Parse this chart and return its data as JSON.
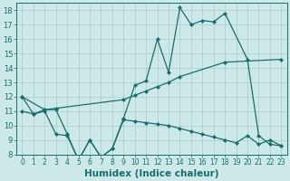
{
  "title": "",
  "xlabel": "Humidex (Indice chaleur)",
  "background_color": "#cce8e8",
  "grid_color": "#aacccc",
  "line_color": "#1a6e6a",
  "xlim": [
    -0.5,
    23.5
  ],
  "ylim": [
    8,
    18.5
  ],
  "xticks": [
    0,
    1,
    2,
    3,
    4,
    5,
    6,
    7,
    8,
    9,
    10,
    11,
    12,
    13,
    14,
    15,
    16,
    17,
    18,
    19,
    20,
    21,
    22,
    23
  ],
  "yticks": [
    8,
    9,
    10,
    11,
    12,
    13,
    14,
    15,
    16,
    17,
    18
  ],
  "line1_x": [
    0,
    1,
    2,
    3,
    4,
    5,
    6,
    7,
    8,
    9,
    10,
    11,
    12,
    13,
    14,
    15,
    16,
    17,
    18,
    20,
    21,
    22,
    23
  ],
  "line1_y": [
    12.0,
    10.8,
    11.1,
    11.1,
    9.4,
    7.6,
    9.0,
    7.8,
    8.4,
    10.5,
    12.8,
    13.1,
    16.0,
    13.7,
    18.2,
    17.0,
    17.3,
    17.2,
    17.8,
    14.6,
    9.3,
    8.7,
    8.6
  ],
  "line2_x": [
    0,
    2,
    3,
    9,
    10,
    11,
    12,
    13,
    14,
    18,
    23
  ],
  "line2_y": [
    12.0,
    11.1,
    11.2,
    11.8,
    12.1,
    12.4,
    12.7,
    13.0,
    13.4,
    14.4,
    14.6
  ],
  "line3_x": [
    0,
    1,
    2,
    3,
    4,
    5,
    6,
    7,
    8,
    9,
    10,
    11,
    12,
    13,
    14,
    15,
    16,
    17,
    18,
    19,
    20,
    21,
    22,
    23
  ],
  "line3_y": [
    11.0,
    10.8,
    11.0,
    9.4,
    9.3,
    7.6,
    9.0,
    7.8,
    8.4,
    10.4,
    10.3,
    10.2,
    10.1,
    10.0,
    9.8,
    9.6,
    9.4,
    9.2,
    9.0,
    8.8,
    9.3,
    8.7,
    9.0,
    8.6
  ],
  "tick_fontsize": 6,
  "xlabel_fontsize": 7.5
}
